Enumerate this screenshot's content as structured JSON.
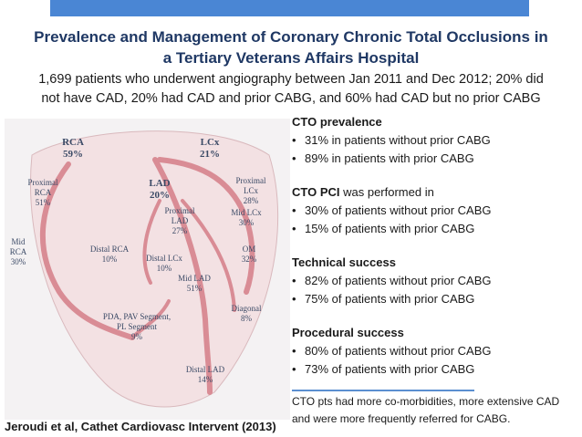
{
  "header": {
    "title": [
      "Prevalence and Management of Coronary Chronic Total Occlusions in",
      "a Tertiary Veterans Affairs Hospital"
    ],
    "subtitle": [
      "1,699 patients who underwent angiography between Jan 2011 and Dec 2012; 20% did",
      "not have CAD, 20% had CAD and prior CABG, and 60% had CAD but no prior CABG"
    ]
  },
  "diagram": {
    "labels": [
      {
        "name": "RCA",
        "value": "59%"
      },
      {
        "name": "LCx",
        "value": "21%"
      },
      {
        "name": "LAD",
        "value": "20%"
      },
      {
        "name": "Proximal RCA",
        "value": "51%"
      },
      {
        "name": "Proximal LCx",
        "value": "28%"
      },
      {
        "name": "Proximal LAD",
        "value": "27%"
      },
      {
        "name": "Mid LCx",
        "value": "30%"
      },
      {
        "name": "Mid RCA",
        "value": "30%"
      },
      {
        "name": "Distal RCA",
        "value": "10%"
      },
      {
        "name": "Distal LCx",
        "value": "10%"
      },
      {
        "name": "OM",
        "value": "32%"
      },
      {
        "name": "Mid LAD",
        "value": "51%"
      },
      {
        "name": "Diagonal",
        "value": "8%"
      },
      {
        "name": "PDA, PAV Segment, PL Segment",
        "value": "9%"
      },
      {
        "name": "Distal LAD",
        "value": "14%"
      }
    ]
  },
  "sections": [
    {
      "heading": "CTO prevalence",
      "bullets": [
        "31% in patients without prior CABG",
        "89% in patients with prior CABG"
      ]
    },
    {
      "heading": "CTO PCI",
      "heading_rest": " was performed in",
      "bullets": [
        "30% of patients without prior CABG",
        "15% of patients with prior CABG"
      ]
    },
    {
      "heading": "Technical success",
      "bullets": [
        "82% of patients without prior CABG",
        "75% of patients with prior CABG"
      ]
    },
    {
      "heading": "Procedural success",
      "bullets": [
        "80% of patients without prior CABG",
        "73% of patients with prior CABG"
      ]
    }
  ],
  "note": [
    "CTO pts had more co-morbidities, more extensive CAD",
    "and were more frequently referred for CABG."
  ],
  "citation": "Jeroudi et al, Cathet Cardiovasc Intervent (2013)"
}
